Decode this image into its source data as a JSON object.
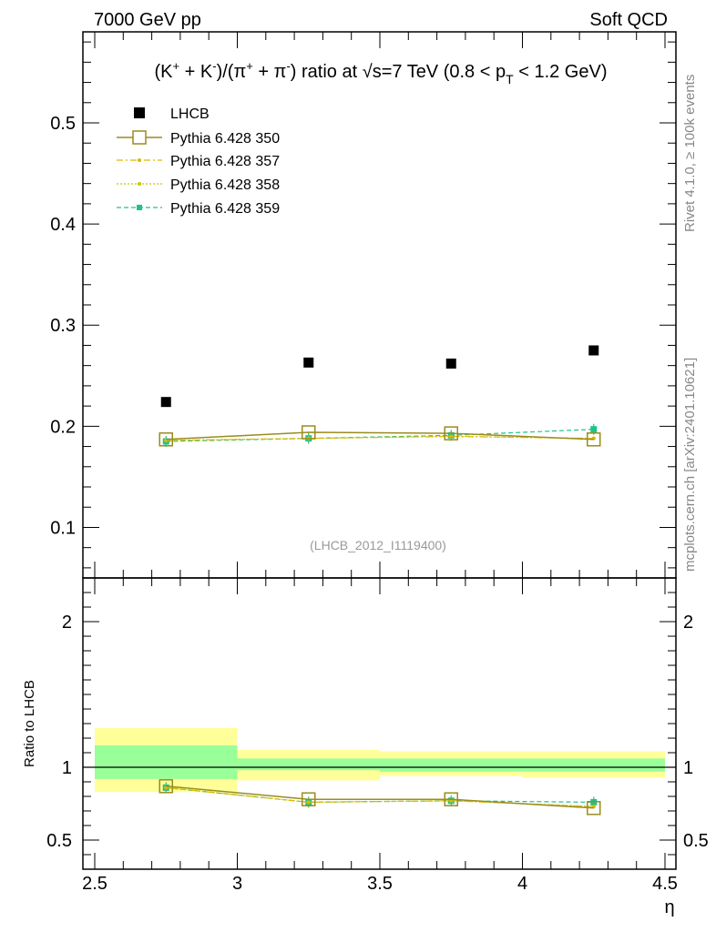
{
  "header": {
    "left": "7000 GeV pp",
    "right": "Soft QCD"
  },
  "side": {
    "rivet": "Rivet 4.1.0, ≥ 100k events",
    "mcplots": "mcplots.cern.ch [arXiv:2401.10621]"
  },
  "title": {
    "prefix": "(K",
    "sup1": "+",
    "mid1": " + K",
    "sup2": "-",
    "mid2": ")/(π",
    "sup3": "+",
    "mid3": " + π",
    "sup4": "-",
    "mid4": ") ratio at √s=7 TeV (0.8 < p",
    "sub": "T",
    "suffix": " < 1.2 GeV)"
  },
  "watermark": "(LHCB_2012_I1119400)",
  "ratio_ylabel": "Ratio to LHCB",
  "xlabel": "η",
  "colors": {
    "lhcb": "#000000",
    "p350": "#9a8c1e",
    "p357": "#e0b800",
    "p358": "#c8c800",
    "p359": "#1ec38c",
    "band_outer": "#ffff99",
    "band_inner": "#99ff99"
  },
  "chart_data": [
    {
      "type": "scatter",
      "panel": "main",
      "title": "(K+ + K-)/(pi+ + pi-) ratio at sqrt(s)=7 TeV (0.8 < pT < 1.2 GeV)",
      "xlabel": "",
      "ylabel": "",
      "xlim": [
        2.5,
        4.5
      ],
      "ylim": [
        0.05,
        0.59
      ],
      "yticks": [
        0.1,
        0.2,
        0.3,
        0.4,
        0.5
      ],
      "ytick_labels": [
        "0.1",
        "0.2",
        "0.3",
        "0.4",
        "0.5"
      ],
      "legend_position": "top-left",
      "series": [
        {
          "name": "LHCB",
          "style": "data",
          "x": [
            2.75,
            3.25,
            3.75,
            4.25
          ],
          "y": [
            0.224,
            0.263,
            0.262,
            0.275
          ]
        },
        {
          "name": "Pythia 6.428 350",
          "style": "solid-open-square",
          "x": [
            2.75,
            3.25,
            3.75,
            4.25
          ],
          "y": [
            0.187,
            0.194,
            0.193,
            0.187
          ]
        },
        {
          "name": "Pythia 6.428 357",
          "style": "dashdot",
          "x": [
            2.75,
            3.25,
            3.75,
            4.25
          ],
          "y": [
            0.186,
            0.188,
            0.19,
            0.188
          ]
        },
        {
          "name": "Pythia 6.428 358",
          "style": "dotted",
          "x": [
            2.75,
            3.25,
            3.75,
            4.25
          ],
          "y": [
            0.186,
            0.188,
            0.19,
            0.188
          ]
        },
        {
          "name": "Pythia 6.428 359",
          "style": "dashed-filled",
          "x": [
            2.75,
            3.25,
            3.75,
            4.25
          ],
          "y": [
            0.185,
            0.188,
            0.191,
            0.197
          ]
        }
      ]
    },
    {
      "type": "line",
      "panel": "ratio",
      "ylabel": "Ratio to LHCB",
      "xlabel": "η",
      "xlim": [
        2.5,
        4.5
      ],
      "ylim": [
        0.3,
        2.3
      ],
      "yticks": [
        0.5,
        1,
        2
      ],
      "ytick_labels": [
        "0.5",
        "1",
        "2"
      ],
      "xticks": [
        2.5,
        3,
        3.5,
        4,
        4.5
      ],
      "xtick_labels": [
        "2.5",
        "3",
        "3.5",
        "4",
        "4.5"
      ],
      "bands": {
        "bins": [
          [
            2.5,
            3.0
          ],
          [
            3.0,
            3.5
          ],
          [
            3.5,
            4.0
          ],
          [
            4.0,
            4.5
          ]
        ],
        "outer": [
          [
            0.83,
            1.27
          ],
          [
            0.91,
            1.12
          ],
          [
            0.94,
            1.11
          ],
          [
            0.93,
            1.11
          ]
        ],
        "inner": [
          [
            0.92,
            1.15
          ],
          [
            0.98,
            1.06
          ],
          [
            0.97,
            1.06
          ],
          [
            0.97,
            1.06
          ]
        ]
      },
      "series": [
        {
          "name": "Pythia 6.428 350",
          "x": [
            2.75,
            3.25,
            3.75,
            4.25
          ],
          "y": [
            0.87,
            0.78,
            0.78,
            0.72
          ]
        },
        {
          "name": "Pythia 6.428 357",
          "x": [
            2.75,
            3.25,
            3.75,
            4.25
          ],
          "y": [
            0.86,
            0.76,
            0.77,
            0.73
          ]
        },
        {
          "name": "Pythia 6.428 358",
          "x": [
            2.75,
            3.25,
            3.75,
            4.25
          ],
          "y": [
            0.86,
            0.76,
            0.77,
            0.73
          ]
        },
        {
          "name": "Pythia 6.428 359",
          "x": [
            2.75,
            3.25,
            3.75,
            4.25
          ],
          "y": [
            0.86,
            0.76,
            0.77,
            0.76
          ]
        }
      ]
    }
  ]
}
